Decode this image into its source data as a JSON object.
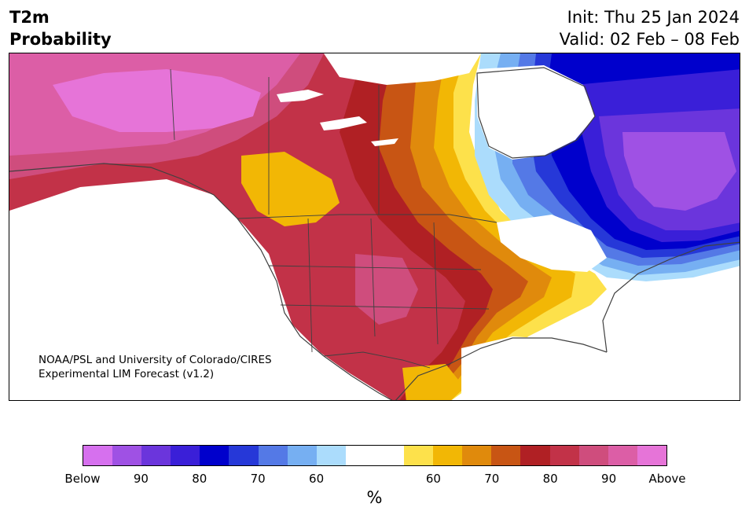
{
  "header": {
    "title_line1": "T2m",
    "title_line2": "Probability",
    "init": "Init: Thu 25 Jan 2024",
    "valid": "Valid: 02 Feb – 08 Feb"
  },
  "credit": {
    "line1": "NOAA/PSL and University of Colorado/CIRES",
    "line2": "Experimental LIM Forecast (v1.2)"
  },
  "colorbar": {
    "unit": "%",
    "colors": [
      "#d670ee",
      "#9f51e4",
      "#6b35dc",
      "#3a1fd8",
      "#0000cc",
      "#2638d8",
      "#5479e6",
      "#76aff2",
      "#abdcfc",
      "#ffffff",
      "#ffffff",
      "#fde14b",
      "#f2b705",
      "#e08a0c",
      "#c85514",
      "#b02024",
      "#c23248",
      "#cf4d7d",
      "#dc5ea6",
      "#e674d8"
    ],
    "tick_labels": [
      "Below",
      "90",
      "80",
      "70",
      "60",
      "60",
      "70",
      "80",
      "90",
      "Above"
    ]
  },
  "map": {
    "colors": {
      "above_max": "#e674d8",
      "above_90": "#dc5ea6",
      "above_85": "#cf4d7d",
      "above_80": "#c23248",
      "above_75": "#b02024",
      "above_70": "#c85514",
      "above_65": "#e08a0c",
      "above_60": "#f2b705",
      "above_55": "#fde14b",
      "below_55": "#abdcfc",
      "below_60": "#76aff2",
      "below_65": "#5479e6",
      "below_70": "#2638d8",
      "below_75": "#0000cc",
      "below_80": "#3a1fd8",
      "below_85": "#6b35dc",
      "below_90": "#9f51e4",
      "water": "#ffffff",
      "border": "#404040"
    }
  }
}
